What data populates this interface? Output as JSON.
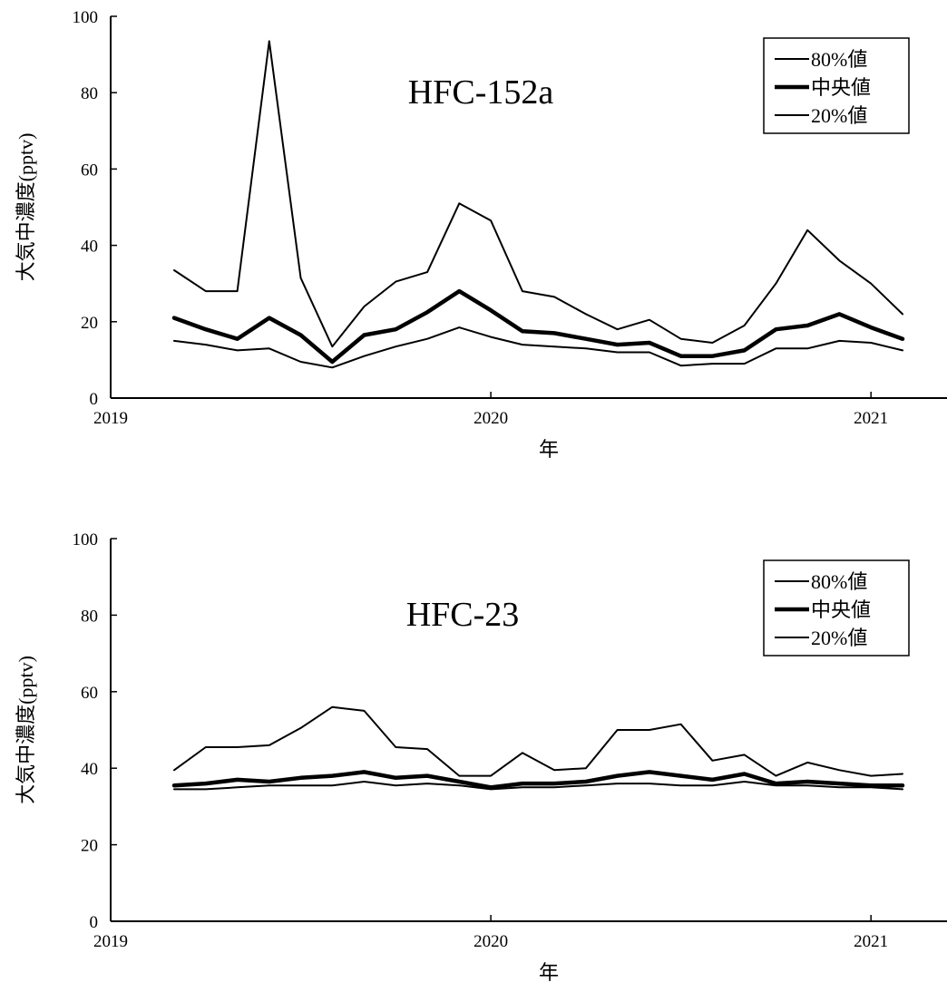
{
  "chart_data": [
    {
      "type": "line",
      "title": "HFC-152a",
      "xlabel": "年",
      "ylabel": "大気中濃度(pptv)",
      "xlim": [
        2019,
        2021.2
      ],
      "ylim": [
        0,
        100
      ],
      "x_ticks": [
        2019,
        2020,
        2021
      ],
      "x_tick_labels": [
        "2019",
        "2020",
        "2021"
      ],
      "y_ticks": [
        0,
        20,
        40,
        60,
        80,
        100
      ],
      "y_tick_labels": [
        "0",
        "20",
        "40",
        "60",
        "80",
        "100"
      ],
      "grid": false,
      "legend_position": "top-right",
      "x": [
        2019.167,
        2019.25,
        2019.333,
        2019.417,
        2019.5,
        2019.583,
        2019.667,
        2019.75,
        2019.833,
        2019.917,
        2020.0,
        2020.083,
        2020.167,
        2020.25,
        2020.333,
        2020.417,
        2020.5,
        2020.583,
        2020.667,
        2020.75,
        2020.833,
        2020.917,
        2021.0,
        2021.083
      ],
      "series": [
        {
          "name": "80%値",
          "line_width": "thin",
          "values": [
            33.5,
            28,
            28,
            93.5,
            31.5,
            13.5,
            24,
            30.5,
            33,
            51,
            46.5,
            28,
            26.5,
            22,
            18,
            20.5,
            15.5,
            14.5,
            19,
            30,
            44,
            36,
            30,
            22
          ]
        },
        {
          "name": "中央値",
          "line_width": "thick",
          "values": [
            21,
            18,
            15.5,
            21,
            16.5,
            9.5,
            16.5,
            18,
            22.5,
            28,
            23,
            17.5,
            17,
            15.5,
            14,
            14.5,
            11,
            11,
            12.5,
            18,
            19,
            22,
            18.5,
            15.5
          ]
        },
        {
          "name": "20%値",
          "line_width": "thin",
          "values": [
            15,
            14,
            12.5,
            13,
            9.5,
            8,
            11,
            13.5,
            15.5,
            18.5,
            16,
            14,
            13.5,
            13,
            12,
            12,
            8.5,
            9,
            9,
            13,
            13,
            15,
            14.5,
            12.5
          ]
        }
      ]
    },
    {
      "type": "line",
      "title": "HFC-23",
      "xlabel": "年",
      "ylabel": "大気中濃度(pptv)",
      "xlim": [
        2019,
        2021.2
      ],
      "ylim": [
        0,
        100
      ],
      "x_ticks": [
        2019,
        2020,
        2021
      ],
      "x_tick_labels": [
        "2019",
        "2020",
        "2021"
      ],
      "y_ticks": [
        0,
        20,
        40,
        60,
        80,
        100
      ],
      "y_tick_labels": [
        "0",
        "20",
        "40",
        "60",
        "80",
        "100"
      ],
      "grid": false,
      "legend_position": "top-right",
      "x": [
        2019.167,
        2019.25,
        2019.333,
        2019.417,
        2019.5,
        2019.583,
        2019.667,
        2019.75,
        2019.833,
        2019.917,
        2020.0,
        2020.083,
        2020.167,
        2020.25,
        2020.333,
        2020.417,
        2020.5,
        2020.583,
        2020.667,
        2020.75,
        2020.833,
        2020.917,
        2021.0,
        2021.083
      ],
      "series": [
        {
          "name": "80%値",
          "line_width": "thin",
          "values": [
            39.5,
            45.5,
            45.5,
            46,
            50.5,
            56,
            55,
            45.5,
            45,
            38,
            38,
            44,
            39.5,
            40,
            50,
            50,
            51.5,
            42,
            43.5,
            38,
            41.5,
            39.5,
            38,
            38.5
          ]
        },
        {
          "name": "中央値",
          "line_width": "thick",
          "values": [
            35.5,
            36,
            37,
            36.5,
            37.5,
            38,
            39,
            37.5,
            38,
            36.5,
            35,
            36,
            36,
            36.5,
            38,
            39,
            38,
            37,
            38.5,
            36,
            36.5,
            36,
            35.5,
            35.5
          ]
        },
        {
          "name": "20%値",
          "line_width": "thin",
          "values": [
            34.5,
            34.5,
            35,
            35.5,
            35.5,
            35.5,
            36.5,
            35.5,
            36,
            35.5,
            34.5,
            35,
            35,
            35.5,
            36,
            36,
            35.5,
            35.5,
            36.5,
            35.5,
            35.5,
            35,
            35,
            34.5
          ]
        }
      ]
    }
  ]
}
